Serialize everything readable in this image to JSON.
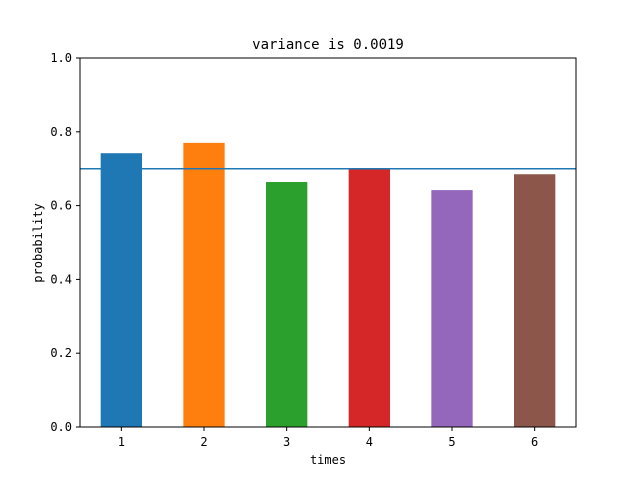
{
  "chart_data": {
    "type": "bar",
    "title": "variance is 0.0019",
    "xlabel": "times",
    "ylabel": "probability",
    "categories": [
      "1",
      "2",
      "3",
      "4",
      "5",
      "6"
    ],
    "values": [
      0.742,
      0.77,
      0.664,
      0.7,
      0.642,
      0.685
    ],
    "bar_colors": [
      "#1f77b4",
      "#ff7f0e",
      "#2ca02c",
      "#d62728",
      "#9467bd",
      "#8c564b"
    ],
    "ylim": [
      0,
      1.0
    ],
    "yticks": [
      "0.0",
      "0.2",
      "0.4",
      "0.6",
      "0.8",
      "1.0"
    ],
    "reference_line": {
      "y": 0.7,
      "color": "#1f77b4"
    },
    "grid": false
  }
}
